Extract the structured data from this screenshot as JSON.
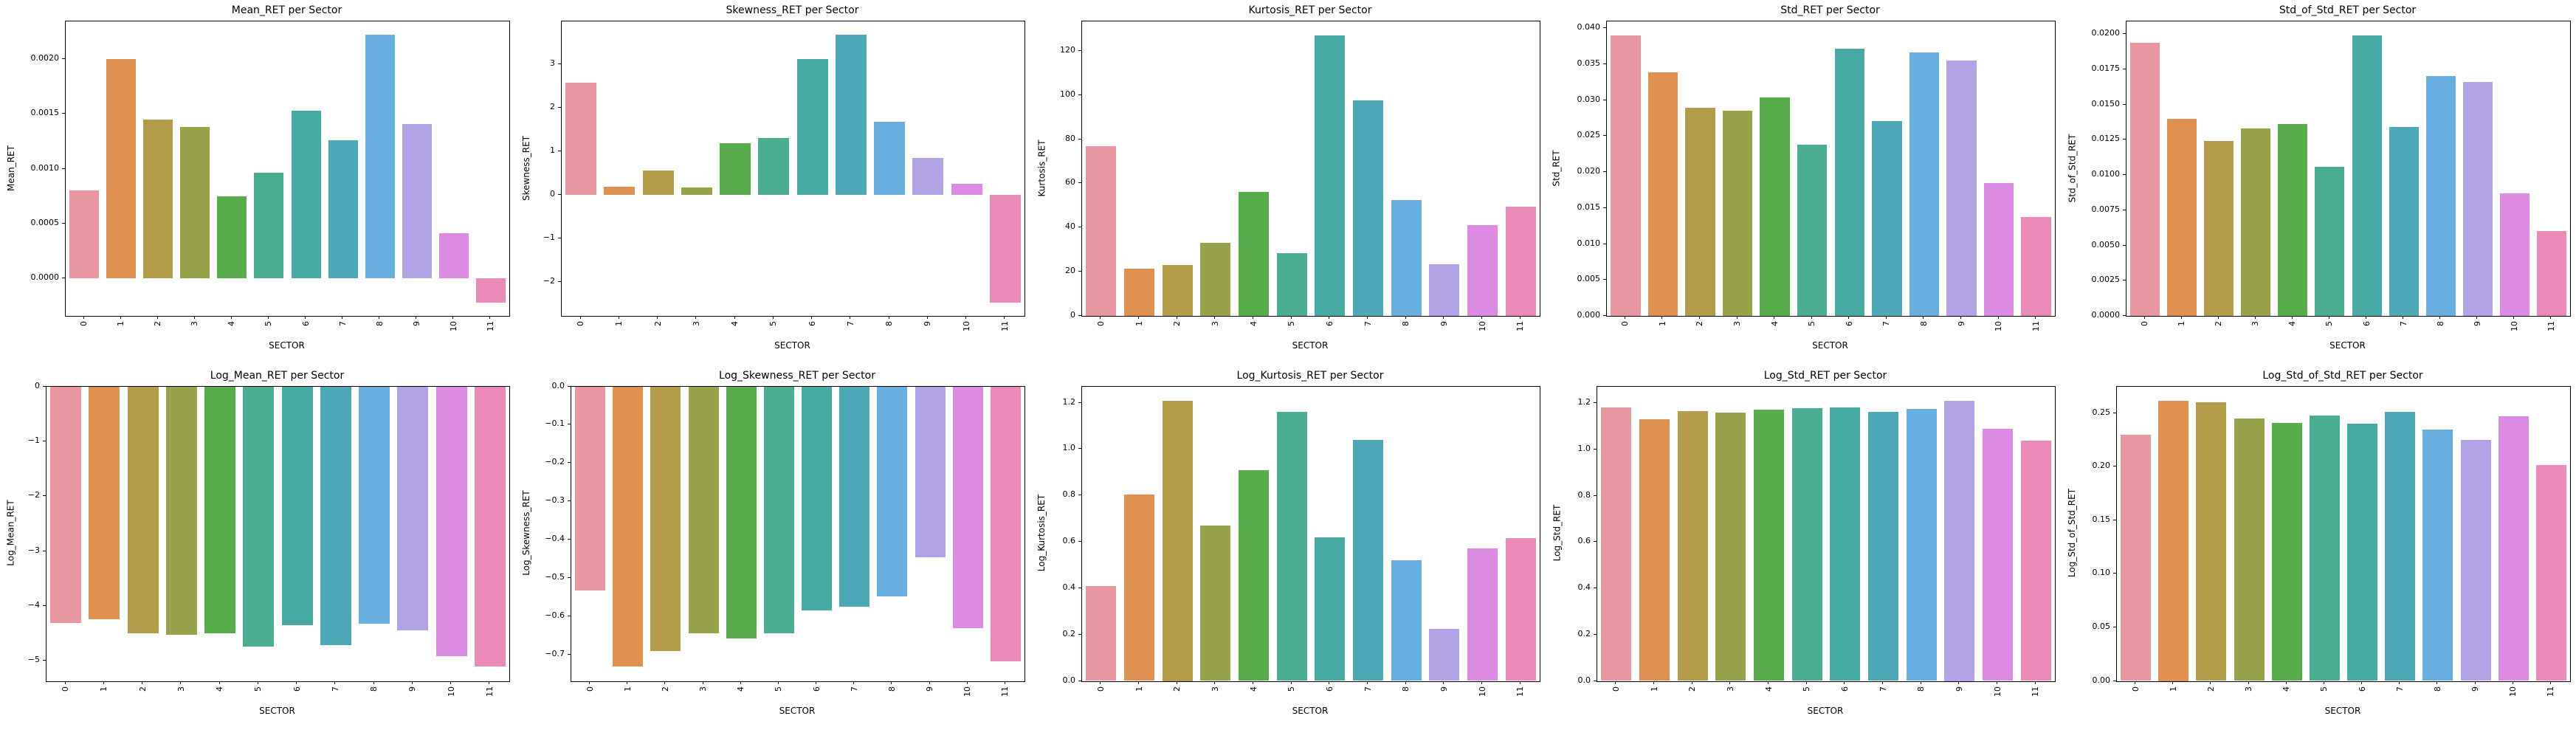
{
  "palette": [
    "#e897a1",
    "#df9152",
    "#b49b4a",
    "#97a24a",
    "#58ac4c",
    "#4bad92",
    "#48aaa4",
    "#4da8b8",
    "#68aedf",
    "#b2a3e5",
    "#dc8be3",
    "#ea8ab8"
  ],
  "chart_data": [
    {
      "type": "bar",
      "title": "Mean_RET per Sector",
      "ylabel": "Mean_RET",
      "xlabel": "SECTOR",
      "categories": [
        "0",
        "1",
        "2",
        "3",
        "4",
        "5",
        "6",
        "7",
        "8",
        "9",
        "10",
        "11"
      ],
      "values": [
        0.0008,
        0.002,
        0.00145,
        0.00138,
        0.00075,
        0.00096,
        0.00153,
        0.00126,
        0.00222,
        0.00141,
        0.00041,
        -0.00022
      ],
      "ylim": [
        -0.000342,
        0.002342
      ],
      "ytick_values": [
        0.0,
        0.0005,
        0.001,
        0.0015,
        0.002
      ],
      "ytick_labels": [
        "0.0000",
        "0.0005",
        "0.0010",
        "0.0015",
        "0.0020"
      ],
      "grid": false,
      "legend": null
    },
    {
      "type": "bar",
      "title": "Skewness_RET per Sector",
      "ylabel": "Skewness_RET",
      "xlabel": "SECTOR",
      "categories": [
        "0",
        "1",
        "2",
        "3",
        "4",
        "5",
        "6",
        "7",
        "8",
        "9",
        "10",
        "11"
      ],
      "values": [
        2.58,
        0.19,
        0.55,
        0.16,
        1.19,
        1.31,
        3.12,
        3.68,
        1.68,
        0.85,
        0.26,
        -2.48
      ],
      "ylim": [
        -2.788,
        3.988
      ],
      "ytick_values": [
        -2,
        -1,
        0,
        1,
        2,
        3
      ],
      "ytick_labels": [
        "−2",
        "−1",
        "0",
        "1",
        "2",
        "3"
      ],
      "grid": false,
      "legend": null
    },
    {
      "type": "bar",
      "title": "Kurtosis_RET per Sector",
      "ylabel": "Kurtosis_RET",
      "xlabel": "SECTOR",
      "categories": [
        "0",
        "1",
        "2",
        "3",
        "4",
        "5",
        "6",
        "7",
        "8",
        "9",
        "10",
        "11"
      ],
      "values": [
        77,
        21.5,
        23,
        33,
        56,
        28.5,
        127,
        97.5,
        52.5,
        23.5,
        41,
        49.5
      ],
      "ylim": [
        0,
        133.35
      ],
      "ytick_values": [
        0,
        20,
        40,
        60,
        80,
        100,
        120
      ],
      "ytick_labels": [
        "0",
        "20",
        "40",
        "60",
        "80",
        "100",
        "120"
      ],
      "grid": false,
      "legend": null
    },
    {
      "type": "bar",
      "title": "Std_RET per Sector",
      "ylabel": "Std_RET",
      "xlabel": "SECTOR",
      "categories": [
        "0",
        "1",
        "2",
        "3",
        "4",
        "5",
        "6",
        "7",
        "8",
        "9",
        "10",
        "11"
      ],
      "values": [
        0.039,
        0.0339,
        0.0289,
        0.0285,
        0.0304,
        0.0238,
        0.0372,
        0.0271,
        0.0366,
        0.0355,
        0.0185,
        0.0138
      ],
      "ylim": [
        0,
        0.04095
      ],
      "ytick_values": [
        0.0,
        0.005,
        0.01,
        0.015,
        0.02,
        0.025,
        0.03,
        0.035,
        0.04
      ],
      "ytick_labels": [
        "0.000",
        "0.005",
        "0.010",
        "0.015",
        "0.020",
        "0.025",
        "0.030",
        "0.035",
        "0.040"
      ],
      "grid": false,
      "legend": null
    },
    {
      "type": "bar",
      "title": "Std_of_Std_RET per Sector",
      "ylabel": "Std_of_Std_RET",
      "xlabel": "SECTOR",
      "categories": [
        "0",
        "1",
        "2",
        "3",
        "4",
        "5",
        "6",
        "7",
        "8",
        "9",
        "10",
        "11"
      ],
      "values": [
        0.0194,
        0.014,
        0.0124,
        0.0133,
        0.0136,
        0.0106,
        0.0199,
        0.0134,
        0.017,
        0.0166,
        0.0087,
        0.006
      ],
      "ylim": [
        0,
        0.020895
      ],
      "ytick_values": [
        0.0,
        0.0025,
        0.005,
        0.0075,
        0.01,
        0.0125,
        0.015,
        0.0175,
        0.02
      ],
      "ytick_labels": [
        "0.0000",
        "0.0025",
        "0.0050",
        "0.0075",
        "0.0100",
        "0.0125",
        "0.0150",
        "0.0175",
        "0.0200"
      ],
      "grid": false,
      "legend": null
    },
    {
      "type": "bar",
      "title": "Log_Mean_RET per Sector",
      "ylabel": "Log_Mean_RET",
      "xlabel": "SECTOR",
      "categories": [
        "0",
        "1",
        "2",
        "3",
        "4",
        "5",
        "6",
        "7",
        "8",
        "9",
        "10",
        "11"
      ],
      "values": [
        -4.31,
        -4.24,
        -4.5,
        -4.53,
        -4.5,
        -4.74,
        -4.35,
        -4.71,
        -4.32,
        -4.45,
        -4.92,
        -5.1
      ],
      "ylim": [
        -5.3655,
        0
      ],
      "ytick_values": [
        0,
        -1,
        -2,
        -3,
        -4,
        -5
      ],
      "ytick_labels": [
        "0",
        "−1",
        "−2",
        "−3",
        "−4",
        "−5"
      ],
      "grid": false,
      "legend": null
    },
    {
      "type": "bar",
      "title": "Log_Skewness_RET per Sector",
      "ylabel": "Log_Skewness_RET",
      "xlabel": "SECTOR",
      "categories": [
        "0",
        "1",
        "2",
        "3",
        "4",
        "5",
        "6",
        "7",
        "8",
        "9",
        "10",
        "11"
      ],
      "values": [
        -0.532,
        -0.731,
        -0.69,
        -0.643,
        -0.657,
        -0.643,
        -0.583,
        -0.575,
        -0.548,
        -0.446,
        -0.631,
        -0.716
      ],
      "ylim": [
        -0.7676,
        0
      ],
      "ytick_values": [
        0.0,
        -0.1,
        -0.2,
        -0.3,
        -0.4,
        -0.5,
        -0.6,
        -0.7
      ],
      "ytick_labels": [
        "0.0",
        "−0.1",
        "−0.2",
        "−0.3",
        "−0.4",
        "−0.5",
        "−0.6",
        "−0.7"
      ],
      "grid": false,
      "legend": null
    },
    {
      "type": "bar",
      "title": "Log_Kurtosis_RET per Sector",
      "ylabel": "Log_Kurtosis_RET",
      "xlabel": "SECTOR",
      "categories": [
        "0",
        "1",
        "2",
        "3",
        "4",
        "5",
        "6",
        "7",
        "8",
        "9",
        "10",
        "11"
      ],
      "values": [
        0.41,
        0.805,
        1.21,
        0.67,
        0.91,
        1.16,
        0.62,
        1.04,
        0.52,
        0.225,
        0.57,
        0.615
      ],
      "ylim": [
        0,
        1.2705
      ],
      "ytick_values": [
        0.0,
        0.2,
        0.4,
        0.6,
        0.8,
        1.0,
        1.2
      ],
      "ytick_labels": [
        "0.0",
        "0.2",
        "0.4",
        "0.6",
        "0.8",
        "1.0",
        "1.2"
      ],
      "grid": false,
      "legend": null
    },
    {
      "type": "bar",
      "title": "Log_Std_RET per Sector",
      "ylabel": "Log_Std_RET",
      "xlabel": "SECTOR",
      "categories": [
        "0",
        "1",
        "2",
        "3",
        "4",
        "5",
        "6",
        "7",
        "8",
        "9",
        "10",
        "11"
      ],
      "values": [
        1.183,
        1.13,
        1.165,
        1.158,
        1.171,
        1.18,
        1.183,
        1.163,
        1.176,
        1.212,
        1.088,
        1.038
      ],
      "ylim": [
        0,
        1.2726
      ],
      "ytick_values": [
        0.0,
        0.2,
        0.4,
        0.6,
        0.8,
        1.0,
        1.2
      ],
      "ytick_labels": [
        "0.0",
        "0.2",
        "0.4",
        "0.6",
        "0.8",
        "1.0",
        "1.2"
      ],
      "grid": false,
      "legend": null
    },
    {
      "type": "bar",
      "title": "Log_Std_of_Std_RET per Sector",
      "ylabel": "Log_Std_of_Std_RET",
      "xlabel": "SECTOR",
      "categories": [
        "0",
        "1",
        "2",
        "3",
        "4",
        "5",
        "6",
        "7",
        "8",
        "9",
        "10",
        "11"
      ],
      "values": [
        0.23,
        0.262,
        0.26,
        0.245,
        0.241,
        0.248,
        0.24,
        0.251,
        0.235,
        0.225,
        0.247,
        0.202
      ],
      "ylim": [
        0,
        0.2751
      ],
      "ytick_values": [
        0.0,
        0.05,
        0.1,
        0.15,
        0.2,
        0.25
      ],
      "ytick_labels": [
        "0.00",
        "0.05",
        "0.10",
        "0.15",
        "0.20",
        "0.25"
      ],
      "grid": false,
      "legend": null
    }
  ]
}
